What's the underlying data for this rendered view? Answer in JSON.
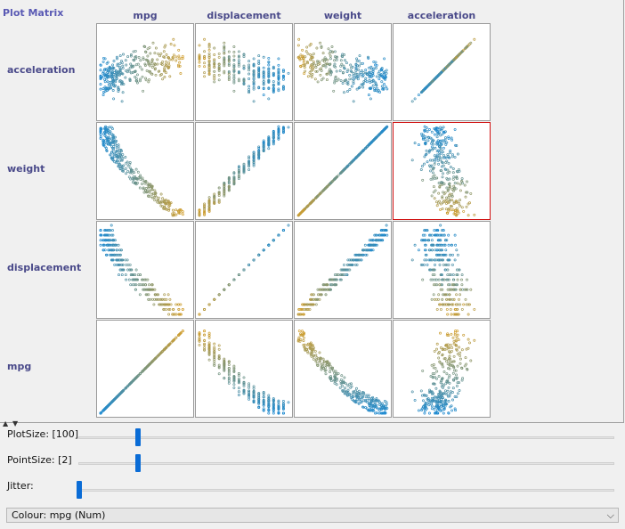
{
  "panel_title": "Plot Matrix",
  "attributes": [
    "mpg",
    "displacement",
    "weight",
    "acceleration"
  ],
  "columns": [
    "mpg",
    "displacement",
    "weight",
    "acceleration"
  ],
  "rows": [
    "acceleration",
    "weight",
    "displacement",
    "mpg"
  ],
  "selected_cell": {
    "row": "weight",
    "column": "acceleration"
  },
  "colour_scale": {
    "low": "#1e8ad0",
    "high": "#e0a020",
    "selection_border": "#d01010"
  },
  "controls": {
    "plot_size_label": "PlotSize: [100]",
    "plot_size_value": 100,
    "point_size_label": "PointSize: [2]",
    "point_size_value": 2,
    "jitter_label": "Jitter:",
    "jitter_value": 0
  },
  "colour_select": {
    "value": "Colour: mpg (Num)"
  },
  "slider_accent": "#0a6cd6"
}
